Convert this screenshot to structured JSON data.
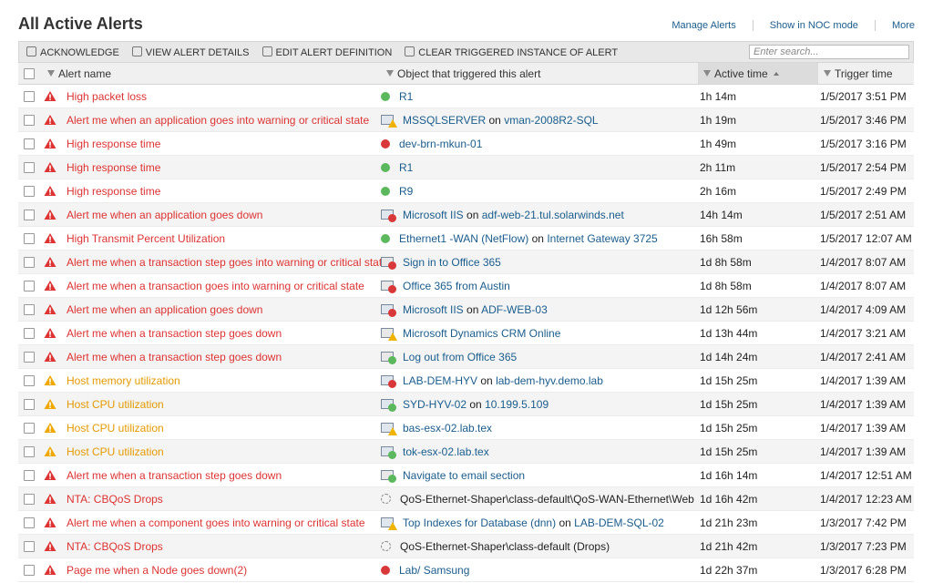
{
  "header": {
    "title": "All Active Alerts",
    "links": [
      "Manage Alerts",
      "Show in NOC mode",
      "More"
    ]
  },
  "toolbar": {
    "actions": [
      "ACKNOWLEDGE",
      "VIEW ALERT DETAILS",
      "EDIT ALERT DEFINITION",
      "CLEAR TRIGGERED INSTANCE OF ALERT"
    ],
    "search_placeholder": "Enter search..."
  },
  "table": {
    "columns": [
      "Alert name",
      "Object that triggered this alert",
      "Active time",
      "Trigger time"
    ],
    "rows": [
      {
        "severity": "critical",
        "name": "High packet loss",
        "status": "up",
        "object": [
          "R1"
        ],
        "active": "1h 14m",
        "trigger": "1/5/2017 3:51 PM"
      },
      {
        "severity": "critical",
        "name": "Alert me when an application goes into warning or critical state",
        "status": "app-warning",
        "object": [
          "MSSQLSERVER",
          "on",
          "vman-2008R2-SQL"
        ],
        "active": "1h 19m",
        "trigger": "1/5/2017 3:46 PM"
      },
      {
        "severity": "critical",
        "name": "High response time",
        "status": "down",
        "object": [
          "dev-brn-mkun-01"
        ],
        "active": "1h 49m",
        "trigger": "1/5/2017 3:16 PM"
      },
      {
        "severity": "critical",
        "name": "High response time",
        "status": "up",
        "object": [
          "R1"
        ],
        "active": "2h 11m",
        "trigger": "1/5/2017 2:54 PM"
      },
      {
        "severity": "critical",
        "name": "High response time",
        "status": "up",
        "object": [
          "R9"
        ],
        "active": "2h 16m",
        "trigger": "1/5/2017 2:49 PM"
      },
      {
        "severity": "critical",
        "name": "Alert me when an application goes down",
        "status": "app-down",
        "object": [
          "Microsoft IIS",
          "on",
          "adf-web-21.tul.solarwinds.net"
        ],
        "active": "14h 14m",
        "trigger": "1/5/2017 2:51 AM"
      },
      {
        "severity": "critical",
        "name": "High Transmit Percent Utilization",
        "status": "up",
        "object": [
          "Ethernet1 -WAN (NetFlow)",
          "on",
          "Internet Gateway 3725"
        ],
        "active": "16h 58m",
        "trigger": "1/5/2017 12:07 AM"
      },
      {
        "severity": "critical",
        "name": "Alert me when a transaction step goes into warning or critical state",
        "status": "tx-critical",
        "object": [
          "Sign in to Office 365"
        ],
        "active": "1d 8h 58m",
        "trigger": "1/4/2017 8:07 AM"
      },
      {
        "severity": "critical",
        "name": "Alert me when a transaction goes into warning or critical state",
        "status": "tx-critical",
        "object": [
          "Office 365 from Austin"
        ],
        "active": "1d 8h 58m",
        "trigger": "1/4/2017 8:07 AM"
      },
      {
        "severity": "critical",
        "name": "Alert me when an application goes down",
        "status": "app-down",
        "object": [
          "Microsoft IIS",
          "on",
          "ADF-WEB-03"
        ],
        "active": "1d 12h 56m",
        "trigger": "1/4/2017 4:09 AM"
      },
      {
        "severity": "critical",
        "name": "Alert me when a transaction step goes down",
        "status": "tx-warning",
        "object": [
          "Microsoft Dynamics CRM Online"
        ],
        "active": "1d 13h 44m",
        "trigger": "1/4/2017 3:21 AM"
      },
      {
        "severity": "critical",
        "name": "Alert me when a transaction step goes down",
        "status": "tx-up",
        "object": [
          "Log out from Office 365"
        ],
        "active": "1d 14h 24m",
        "trigger": "1/4/2017 2:41 AM"
      },
      {
        "severity": "warning",
        "name": "Host memory utilization",
        "status": "app-critical",
        "object": [
          "LAB-DEM-HYV",
          "on",
          "lab-dem-hyv.demo.lab"
        ],
        "active": "1d 15h 25m",
        "trigger": "1/4/2017 1:39 AM"
      },
      {
        "severity": "warning",
        "name": "Host CPU utilization",
        "status": "app-up",
        "object": [
          "SYD-HYV-02",
          "on",
          "10.199.5.109"
        ],
        "active": "1d 15h 25m",
        "trigger": "1/4/2017 1:39 AM"
      },
      {
        "severity": "warning",
        "name": "Host CPU utilization",
        "status": "app-warning",
        "object": [
          "bas-esx-02.lab.tex"
        ],
        "active": "1d 15h 25m",
        "trigger": "1/4/2017 1:39 AM"
      },
      {
        "severity": "warning",
        "name": "Host CPU utilization",
        "status": "app-up",
        "object": [
          "tok-esx-02.lab.tex"
        ],
        "active": "1d 15h 25m",
        "trigger": "1/4/2017 1:39 AM"
      },
      {
        "severity": "critical",
        "name": "Alert me when a transaction step goes down",
        "status": "tx-up",
        "object": [
          "Navigate to email section"
        ],
        "active": "1d 16h 14m",
        "trigger": "1/4/2017 12:51 AM"
      },
      {
        "severity": "critical",
        "name": "NTA: CBQoS Drops",
        "status": "unknown",
        "link": false,
        "object": [
          "QoS-Ethernet-Shaper\\class-default\\QoS-WAN-Ethernet\\Web"
        ],
        "active": "1d 16h 42m",
        "trigger": "1/4/2017 12:23 AM"
      },
      {
        "severity": "critical",
        "name": "Alert me when a component goes into warning or critical state",
        "status": "app-warning",
        "object": [
          "Top Indexes for Database (dnn)",
          "on",
          "LAB-DEM-SQL-02"
        ],
        "active": "1d 21h 23m",
        "trigger": "1/3/2017 7:42 PM"
      },
      {
        "severity": "critical",
        "name": "NTA: CBQoS Drops",
        "status": "unknown",
        "link": false,
        "object": [
          "QoS-Ethernet-Shaper\\class-default (Drops)"
        ],
        "active": "1d 21h 42m",
        "trigger": "1/3/2017 7:23 PM"
      },
      {
        "severity": "critical",
        "name": "Page me when a Node goes down(2)",
        "status": "down",
        "object": [
          "Lab/ Samsung"
        ],
        "active": "1d 22h 37m",
        "trigger": "1/3/2017 6:28 PM"
      }
    ]
  }
}
